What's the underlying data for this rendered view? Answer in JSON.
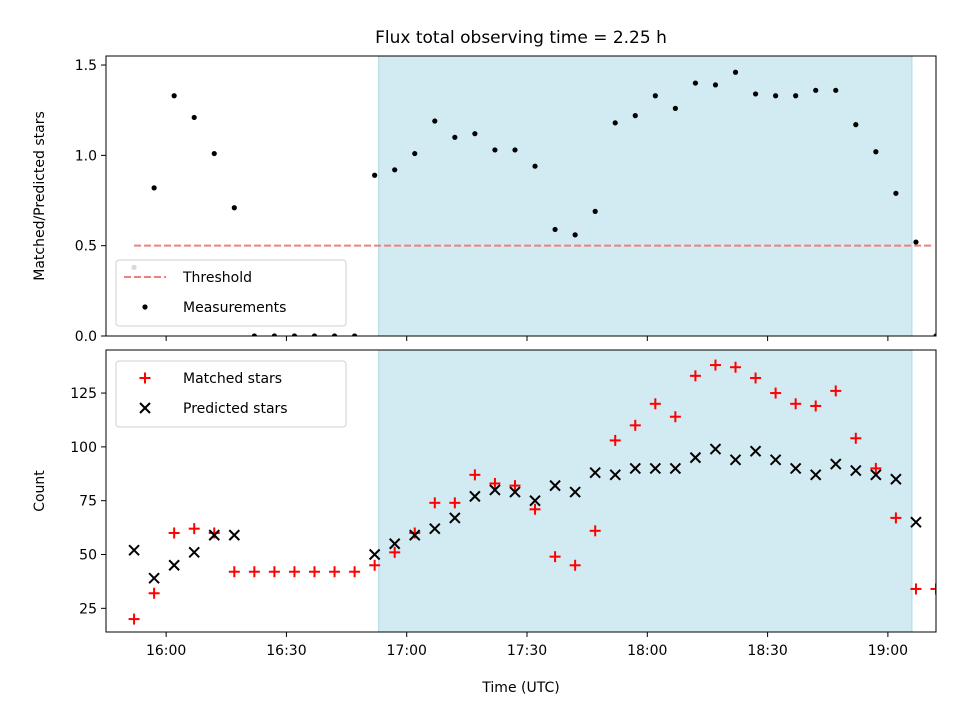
{
  "title": "Flux total observing time = 2.25 h",
  "colors": {
    "shade": "#add8e6",
    "threshold": "#f08080",
    "matched": "#ff0000",
    "predicted": "#000000",
    "measurement": "#000000"
  },
  "chart_data": [
    {
      "type": "scatter",
      "ylabel": "Matched/Predicted stars",
      "xlabel": "",
      "xlim": [
        "15:45",
        "19:12"
      ],
      "ylim": [
        0,
        1.55
      ],
      "yticks": [
        0,
        0.5,
        1.0,
        1.5
      ],
      "ytick_labels": [
        "0.0",
        "0.5",
        "1.0",
        "1.5"
      ],
      "xticks": [
        "16:00",
        "16:30",
        "17:00",
        "17:30",
        "18:00",
        "18:30",
        "19:00"
      ],
      "show_xtick_labels": false,
      "shaded_region": [
        "16:53",
        "19:06"
      ],
      "threshold": {
        "name": "Threshold",
        "y": 0.5,
        "x_from": "15:52",
        "x_to": "19:11"
      },
      "legend": {
        "position": "lower-left",
        "entries": [
          "Threshold",
          "Measurements"
        ]
      },
      "series": [
        {
          "name": "Measurements",
          "marker": "dot",
          "points": [
            [
              "15:52",
              0.38
            ],
            [
              "15:57",
              0.82
            ],
            [
              "16:02",
              1.33
            ],
            [
              "16:07",
              1.21
            ],
            [
              "16:12",
              1.01
            ],
            [
              "16:17",
              0.71
            ],
            [
              "16:22",
              0.0
            ],
            [
              "16:27",
              0.0
            ],
            [
              "16:32",
              0.0
            ],
            [
              "16:37",
              0.0
            ],
            [
              "16:42",
              0.0
            ],
            [
              "16:47",
              0.0
            ],
            [
              "16:52",
              0.89
            ],
            [
              "16:57",
              0.92
            ],
            [
              "17:02",
              1.01
            ],
            [
              "17:07",
              1.19
            ],
            [
              "17:12",
              1.1
            ],
            [
              "17:17",
              1.12
            ],
            [
              "17:22",
              1.03
            ],
            [
              "17:27",
              1.03
            ],
            [
              "17:32",
              0.94
            ],
            [
              "17:37",
              0.59
            ],
            [
              "17:42",
              0.56
            ],
            [
              "17:47",
              0.69
            ],
            [
              "17:52",
              1.18
            ],
            [
              "17:57",
              1.22
            ],
            [
              "18:02",
              1.33
            ],
            [
              "18:07",
              1.26
            ],
            [
              "18:12",
              1.4
            ],
            [
              "18:17",
              1.39
            ],
            [
              "18:22",
              1.46
            ],
            [
              "18:27",
              1.34
            ],
            [
              "18:32",
              1.33
            ],
            [
              "18:37",
              1.33
            ],
            [
              "18:42",
              1.36
            ],
            [
              "18:47",
              1.36
            ],
            [
              "18:52",
              1.17
            ],
            [
              "18:57",
              1.02
            ],
            [
              "19:02",
              0.79
            ],
            [
              "19:07",
              0.52
            ],
            [
              "19:12",
              0.0
            ]
          ]
        }
      ]
    },
    {
      "type": "scatter",
      "ylabel": "Count",
      "xlabel": "Time (UTC)",
      "xlim": [
        "15:45",
        "19:12"
      ],
      "ylim": [
        14,
        145
      ],
      "yticks": [
        25,
        50,
        75,
        100,
        125
      ],
      "ytick_labels": [
        "25",
        "50",
        "75",
        "100",
        "125"
      ],
      "xticks": [
        "16:00",
        "16:30",
        "17:00",
        "17:30",
        "18:00",
        "18:30",
        "19:00"
      ],
      "show_xtick_labels": true,
      "shaded_region": [
        "16:53",
        "19:06"
      ],
      "legend": {
        "position": "upper-left",
        "entries": [
          "Matched stars",
          "Predicted stars"
        ]
      },
      "series": [
        {
          "name": "Matched stars",
          "marker": "plus",
          "points": [
            [
              "15:52",
              20
            ],
            [
              "15:57",
              32
            ],
            [
              "16:02",
              60
            ],
            [
              "16:07",
              62
            ],
            [
              "16:12",
              60
            ],
            [
              "16:17",
              42
            ],
            [
              "16:22",
              42
            ],
            [
              "16:27",
              42
            ],
            [
              "16:32",
              42
            ],
            [
              "16:37",
              42
            ],
            [
              "16:42",
              42
            ],
            [
              "16:47",
              42
            ],
            [
              "16:52",
              45
            ],
            [
              "16:57",
              51
            ],
            [
              "17:02",
              60
            ],
            [
              "17:07",
              74
            ],
            [
              "17:12",
              74
            ],
            [
              "17:17",
              87
            ],
            [
              "17:22",
              83
            ],
            [
              "17:27",
              82
            ],
            [
              "17:32",
              71
            ],
            [
              "17:37",
              49
            ],
            [
              "17:42",
              45
            ],
            [
              "17:47",
              61
            ],
            [
              "17:52",
              103
            ],
            [
              "17:57",
              110
            ],
            [
              "18:02",
              120
            ],
            [
              "18:07",
              114
            ],
            [
              "18:12",
              133
            ],
            [
              "18:17",
              138
            ],
            [
              "18:22",
              137
            ],
            [
              "18:27",
              132
            ],
            [
              "18:32",
              125
            ],
            [
              "18:37",
              120
            ],
            [
              "18:42",
              119
            ],
            [
              "18:47",
              126
            ],
            [
              "18:52",
              104
            ],
            [
              "18:57",
              90
            ],
            [
              "19:02",
              67
            ],
            [
              "19:07",
              34
            ],
            [
              "19:12",
              34
            ]
          ]
        },
        {
          "name": "Predicted stars",
          "marker": "x",
          "points": [
            [
              "15:52",
              52
            ],
            [
              "15:57",
              39
            ],
            [
              "16:02",
              45
            ],
            [
              "16:07",
              51
            ],
            [
              "16:12",
              59
            ],
            [
              "16:17",
              59
            ],
            [
              "16:52",
              50
            ],
            [
              "16:57",
              55
            ],
            [
              "17:02",
              59
            ],
            [
              "17:07",
              62
            ],
            [
              "17:12",
              67
            ],
            [
              "17:17",
              77
            ],
            [
              "17:22",
              80
            ],
            [
              "17:27",
              79
            ],
            [
              "17:32",
              75
            ],
            [
              "17:37",
              82
            ],
            [
              "17:42",
              79
            ],
            [
              "17:47",
              88
            ],
            [
              "17:52",
              87
            ],
            [
              "17:57",
              90
            ],
            [
              "18:02",
              90
            ],
            [
              "18:07",
              90
            ],
            [
              "18:12",
              95
            ],
            [
              "18:17",
              99
            ],
            [
              "18:22",
              94
            ],
            [
              "18:27",
              98
            ],
            [
              "18:32",
              94
            ],
            [
              "18:37",
              90
            ],
            [
              "18:42",
              87
            ],
            [
              "18:47",
              92
            ],
            [
              "18:52",
              89
            ],
            [
              "18:57",
              87
            ],
            [
              "19:02",
              85
            ],
            [
              "19:07",
              65
            ]
          ]
        }
      ]
    }
  ]
}
